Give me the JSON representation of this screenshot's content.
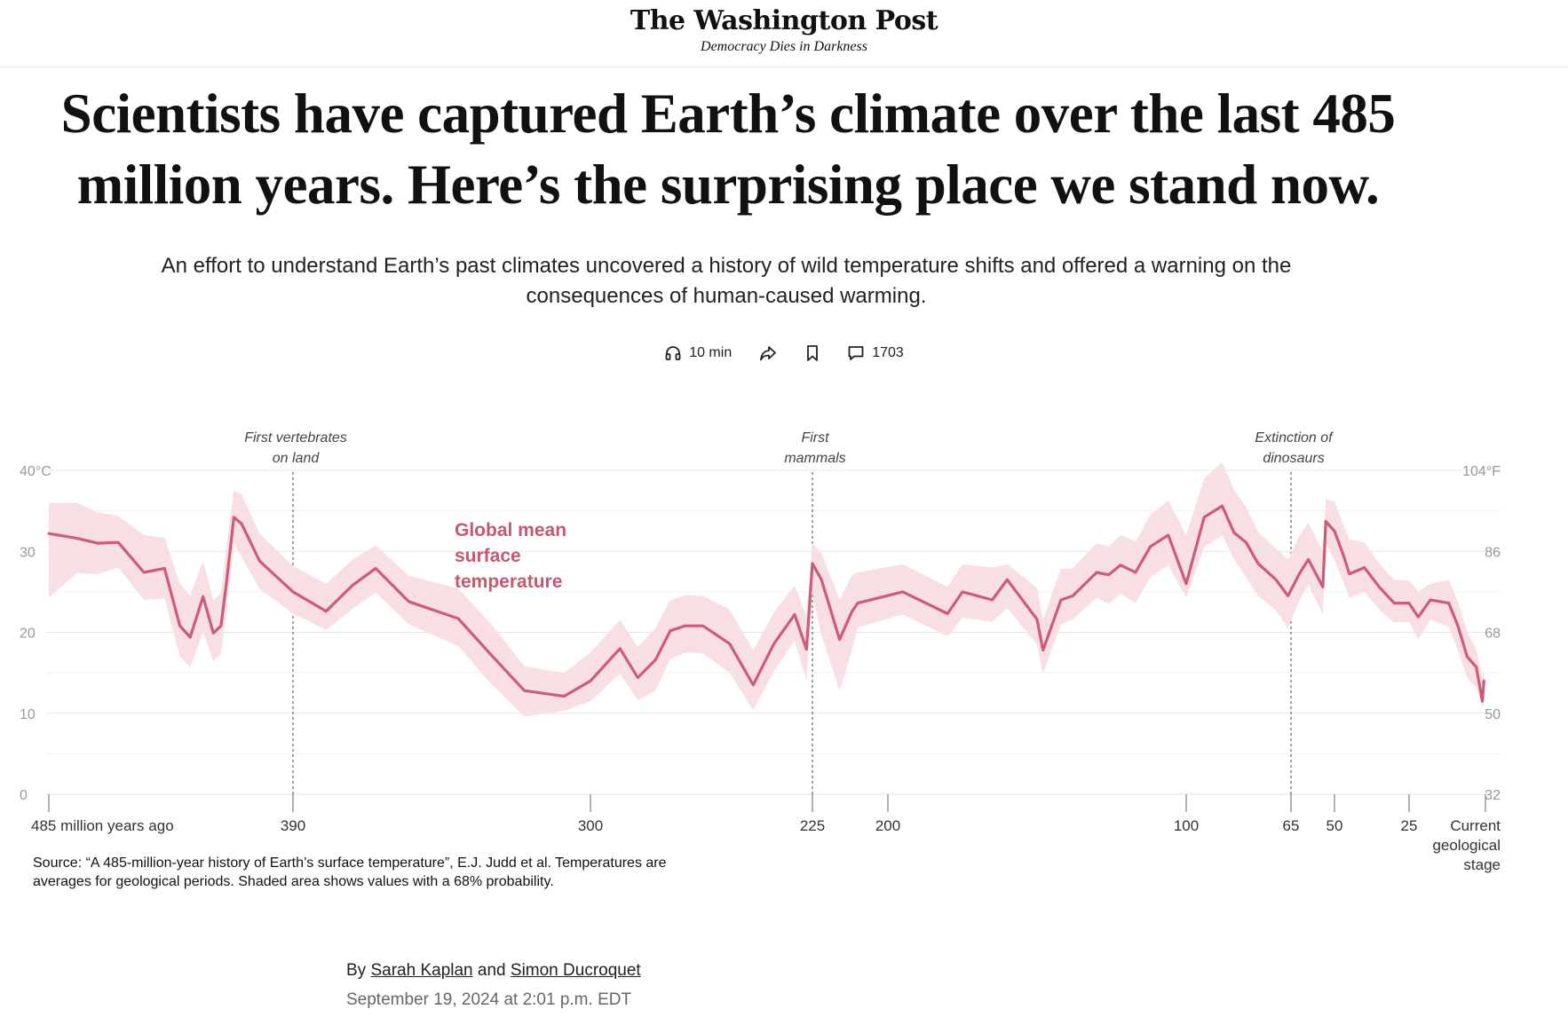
{
  "masthead": {
    "logo": "The Washington Post",
    "tagline": "Democracy Dies in Darkness"
  },
  "article": {
    "headline": "Scientists have captured Earth’s climate over the last 485 million years. Here’s the surprising place we stand now.",
    "dek": "An effort to understand Earth’s past climates uncovered a history of wild temperature shifts and offered a warning on the consequences of human-caused warming.",
    "byline_prefix": "By",
    "author1": "Sarah Kaplan",
    "byline_and": "and",
    "author2": "Simon Ducroquet",
    "date": "September 19, 2024 at 2:01 p.m. EDT"
  },
  "toolbar": {
    "listen_icon": "headphones-icon",
    "listen_label": "10 min",
    "share_icon": "share-icon",
    "save_icon": "bookmark-icon",
    "comments_icon": "comment-icon",
    "comments_count": "1703"
  },
  "source_note": "Source: “A 485-million-year history of Earth’s surface temperature”, E.J. Judd et al. Temperatures are averages for geological periods. Shaded area shows values with a 68% probability.",
  "colors": {
    "line": "#cc5c78",
    "band": "#f7dfe4",
    "label": "#c8586f",
    "grid": "#e8e8e8",
    "axis_text": "#999999"
  },
  "chart_data": {
    "type": "area",
    "series_label": [
      "Global mean",
      "surface",
      "temperature"
    ],
    "x_unit": "million years ago",
    "x_axis_scale": "piecewise (compressed toward the present)",
    "xlim": [
      485,
      0
    ],
    "ylim": [
      0,
      40
    ],
    "y_ticks_left": [
      "40°C",
      "30",
      "20",
      "10",
      "0"
    ],
    "y_tick_values": [
      40,
      30,
      20,
      10,
      0
    ],
    "y_ticks_right": [
      "104°F",
      "86",
      "68",
      "50",
      "32"
    ],
    "x_ticks": [
      {
        "value": 485,
        "label": "485 million years ago"
      },
      {
        "value": 390,
        "label": "390"
      },
      {
        "value": 300,
        "label": "300"
      },
      {
        "value": 225,
        "label": "225"
      },
      {
        "value": 200,
        "label": "200"
      },
      {
        "value": 100,
        "label": "100"
      },
      {
        "value": 65,
        "label": "65"
      },
      {
        "value": 50,
        "label": "50"
      },
      {
        "value": 25,
        "label": "25"
      },
      {
        "value": 0,
        "label": [
          "Current",
          "geological",
          "stage"
        ]
      }
    ],
    "annotations": [
      {
        "x": 390,
        "text": [
          "First vertebrates",
          "on land"
        ]
      },
      {
        "x": 225,
        "text": [
          "First",
          "mammals"
        ]
      },
      {
        "x": 65,
        "text": [
          "Extinction of",
          "dinosaurs"
        ]
      }
    ],
    "grid": true,
    "series": [
      {
        "mean": [
          [
            485,
            32.2
          ],
          [
            474,
            31.6
          ],
          [
            466,
            31
          ],
          [
            458,
            31.1
          ],
          [
            448,
            27.4
          ],
          [
            440,
            27.9
          ],
          [
            434,
            20.8
          ],
          [
            430,
            19.4
          ],
          [
            425,
            24.4
          ],
          [
            421,
            19.9
          ],
          [
            418,
            20.8
          ],
          [
            416,
            25.8
          ],
          [
            413,
            34.2
          ],
          [
            410,
            33.4
          ],
          [
            403,
            28.8
          ],
          [
            390,
            25
          ],
          [
            380,
            22.6
          ],
          [
            372,
            25.8
          ],
          [
            365,
            27.9
          ],
          [
            355,
            23.8
          ],
          [
            340,
            21.7
          ],
          [
            330,
            17.2
          ],
          [
            320,
            12.8
          ],
          [
            308,
            12.1
          ],
          [
            300,
            14
          ],
          [
            290,
            18
          ],
          [
            284,
            14.4
          ],
          [
            278,
            16.6
          ],
          [
            273,
            20.2
          ],
          [
            268,
            20.8
          ],
          [
            262,
            20.8
          ],
          [
            253,
            18.6
          ],
          [
            245,
            13.5
          ],
          [
            238,
            18.6
          ],
          [
            231,
            22.2
          ],
          [
            227,
            17.9
          ],
          [
            225,
            28.5
          ],
          [
            222,
            26.5
          ],
          [
            216,
            19.1
          ],
          [
            212,
            22.5
          ],
          [
            210,
            23.6
          ],
          [
            195,
            25
          ],
          [
            180,
            22.3
          ],
          [
            175,
            25
          ],
          [
            165,
            24
          ],
          [
            160,
            26.5
          ],
          [
            150,
            21.6
          ],
          [
            148,
            17.8
          ],
          [
            142,
            24
          ],
          [
            138,
            24.5
          ],
          [
            130,
            27.4
          ],
          [
            126,
            27.1
          ],
          [
            122,
            28.3
          ],
          [
            117,
            27.4
          ],
          [
            112,
            30.6
          ],
          [
            106,
            32
          ],
          [
            100,
            26
          ],
          [
            100,
            26
          ],
          [
            94,
            34.2
          ],
          [
            88,
            35.6
          ],
          [
            84,
            32.3
          ],
          [
            80,
            31.1
          ],
          [
            76,
            28.5
          ],
          [
            70,
            26.5
          ],
          [
            66,
            24.5
          ],
          [
            62,
            27.3
          ],
          [
            59,
            29
          ],
          [
            54,
            25.6
          ],
          [
            53,
            33.7
          ],
          [
            50,
            32.5
          ],
          [
            47,
            29.5
          ],
          [
            45,
            27.2
          ],
          [
            40,
            28
          ],
          [
            35,
            25.6
          ],
          [
            30,
            23.6
          ],
          [
            25,
            23.6
          ],
          [
            22,
            21.9
          ],
          [
            18,
            24
          ],
          [
            12,
            23.6
          ],
          [
            9,
            20.8
          ],
          [
            6,
            17
          ],
          [
            3,
            15.7
          ],
          [
            1,
            11.5
          ],
          [
            0.5,
            14
          ]
        ],
        "upper": [
          [
            485,
            36
          ],
          [
            474,
            36
          ],
          [
            466,
            34.8
          ],
          [
            458,
            34.4
          ],
          [
            448,
            32
          ],
          [
            440,
            31.7
          ],
          [
            434,
            26
          ],
          [
            430,
            24.5
          ],
          [
            425,
            28.8
          ],
          [
            421,
            24
          ],
          [
            418,
            24.8
          ],
          [
            416,
            30.3
          ],
          [
            413,
            37.5
          ],
          [
            410,
            37
          ],
          [
            403,
            32.2
          ],
          [
            390,
            28.2
          ],
          [
            380,
            26
          ],
          [
            372,
            29
          ],
          [
            365,
            30.7
          ],
          [
            355,
            27
          ],
          [
            340,
            25.4
          ],
          [
            330,
            21
          ],
          [
            320,
            15.8
          ],
          [
            308,
            15
          ],
          [
            300,
            17.5
          ],
          [
            290,
            21.5
          ],
          [
            284,
            18.2
          ],
          [
            278,
            20.5
          ],
          [
            273,
            24
          ],
          [
            268,
            24.6
          ],
          [
            262,
            24.5
          ],
          [
            253,
            22.8
          ],
          [
            245,
            17.8
          ],
          [
            238,
            22.5
          ],
          [
            231,
            25.8
          ],
          [
            227,
            22
          ],
          [
            225,
            31
          ],
          [
            222,
            29.8
          ],
          [
            216,
            24
          ],
          [
            212,
            27
          ],
          [
            210,
            27.4
          ],
          [
            195,
            28.4
          ],
          [
            180,
            25.6
          ],
          [
            175,
            28.4
          ],
          [
            165,
            28
          ],
          [
            160,
            28.4
          ],
          [
            150,
            25.5
          ],
          [
            148,
            21.6
          ],
          [
            142,
            27.8
          ],
          [
            138,
            27.9
          ],
          [
            130,
            31
          ],
          [
            126,
            30.6
          ],
          [
            122,
            32
          ],
          [
            117,
            31.2
          ],
          [
            112,
            34.5
          ],
          [
            106,
            36.3
          ],
          [
            100,
            32
          ],
          [
            100,
            32
          ],
          [
            94,
            39
          ],
          [
            88,
            41
          ],
          [
            84,
            37.6
          ],
          [
            80,
            35.5
          ],
          [
            76,
            32.4
          ],
          [
            70,
            30.3
          ],
          [
            66,
            29
          ],
          [
            62,
            32
          ],
          [
            59,
            33.5
          ],
          [
            54,
            30
          ],
          [
            53,
            36.4
          ],
          [
            50,
            36.2
          ],
          [
            47,
            33.2
          ],
          [
            45,
            31.5
          ],
          [
            40,
            31.1
          ],
          [
            35,
            28.5
          ],
          [
            30,
            26.5
          ],
          [
            25,
            26.4
          ],
          [
            22,
            25
          ],
          [
            18,
            26
          ],
          [
            12,
            26.5
          ],
          [
            9,
            23.8
          ],
          [
            6,
            20.1
          ],
          [
            3,
            17.9
          ],
          [
            1,
            14.4
          ],
          [
            0.5,
            16
          ]
        ],
        "lower": [
          [
            485,
            24.3
          ],
          [
            474,
            27.3
          ],
          [
            466,
            27.2
          ],
          [
            458,
            28
          ],
          [
            448,
            24
          ],
          [
            440,
            24.2
          ],
          [
            434,
            17
          ],
          [
            430,
            15.7
          ],
          [
            425,
            20
          ],
          [
            421,
            16.4
          ],
          [
            418,
            17.4
          ],
          [
            416,
            22.2
          ],
          [
            413,
            31
          ],
          [
            410,
            29.3
          ],
          [
            403,
            25.4
          ],
          [
            390,
            22.3
          ],
          [
            380,
            20.3
          ],
          [
            372,
            22.9
          ],
          [
            365,
            24.9
          ],
          [
            355,
            21
          ],
          [
            340,
            18.3
          ],
          [
            330,
            13.6
          ],
          [
            320,
            9.6
          ],
          [
            308,
            10.3
          ],
          [
            300,
            11.5
          ],
          [
            290,
            14.9
          ],
          [
            284,
            11.6
          ],
          [
            278,
            12.8
          ],
          [
            273,
            16.7
          ],
          [
            268,
            17.5
          ],
          [
            262,
            17.4
          ],
          [
            253,
            15
          ],
          [
            245,
            10.4
          ],
          [
            238,
            15.2
          ],
          [
            231,
            19
          ],
          [
            227,
            14
          ],
          [
            225,
            24.8
          ],
          [
            222,
            19.6
          ],
          [
            216,
            12.8
          ],
          [
            212,
            17.6
          ],
          [
            210,
            20.6
          ],
          [
            195,
            22.2
          ],
          [
            180,
            19.5
          ],
          [
            175,
            21.8
          ],
          [
            165,
            21.3
          ],
          [
            160,
            23
          ],
          [
            150,
            18.5
          ],
          [
            148,
            14.9
          ],
          [
            142,
            21
          ],
          [
            138,
            21.6
          ],
          [
            130,
            24.3
          ],
          [
            126,
            23.5
          ],
          [
            122,
            24.8
          ],
          [
            117,
            23.6
          ],
          [
            112,
            26.8
          ],
          [
            106,
            28.3
          ],
          [
            100,
            24.3
          ],
          [
            100,
            24.3
          ],
          [
            94,
            30.5
          ],
          [
            88,
            32
          ],
          [
            84,
            29
          ],
          [
            80,
            26.8
          ],
          [
            76,
            24.5
          ],
          [
            70,
            22.7
          ],
          [
            66,
            20.5
          ],
          [
            62,
            24
          ],
          [
            59,
            25.9
          ],
          [
            54,
            22.2
          ],
          [
            53,
            31
          ],
          [
            50,
            28.9
          ],
          [
            47,
            26.2
          ],
          [
            45,
            24.2
          ],
          [
            40,
            25
          ],
          [
            35,
            22.8
          ],
          [
            30,
            21.2
          ],
          [
            25,
            21.3
          ],
          [
            22,
            19.1
          ],
          [
            18,
            21.6
          ],
          [
            12,
            20.7
          ],
          [
            9,
            17.8
          ],
          [
            6,
            14.4
          ],
          [
            3,
            13.2
          ],
          [
            1,
            10.7
          ],
          [
            0.5,
            12.2
          ]
        ]
      }
    ]
  }
}
